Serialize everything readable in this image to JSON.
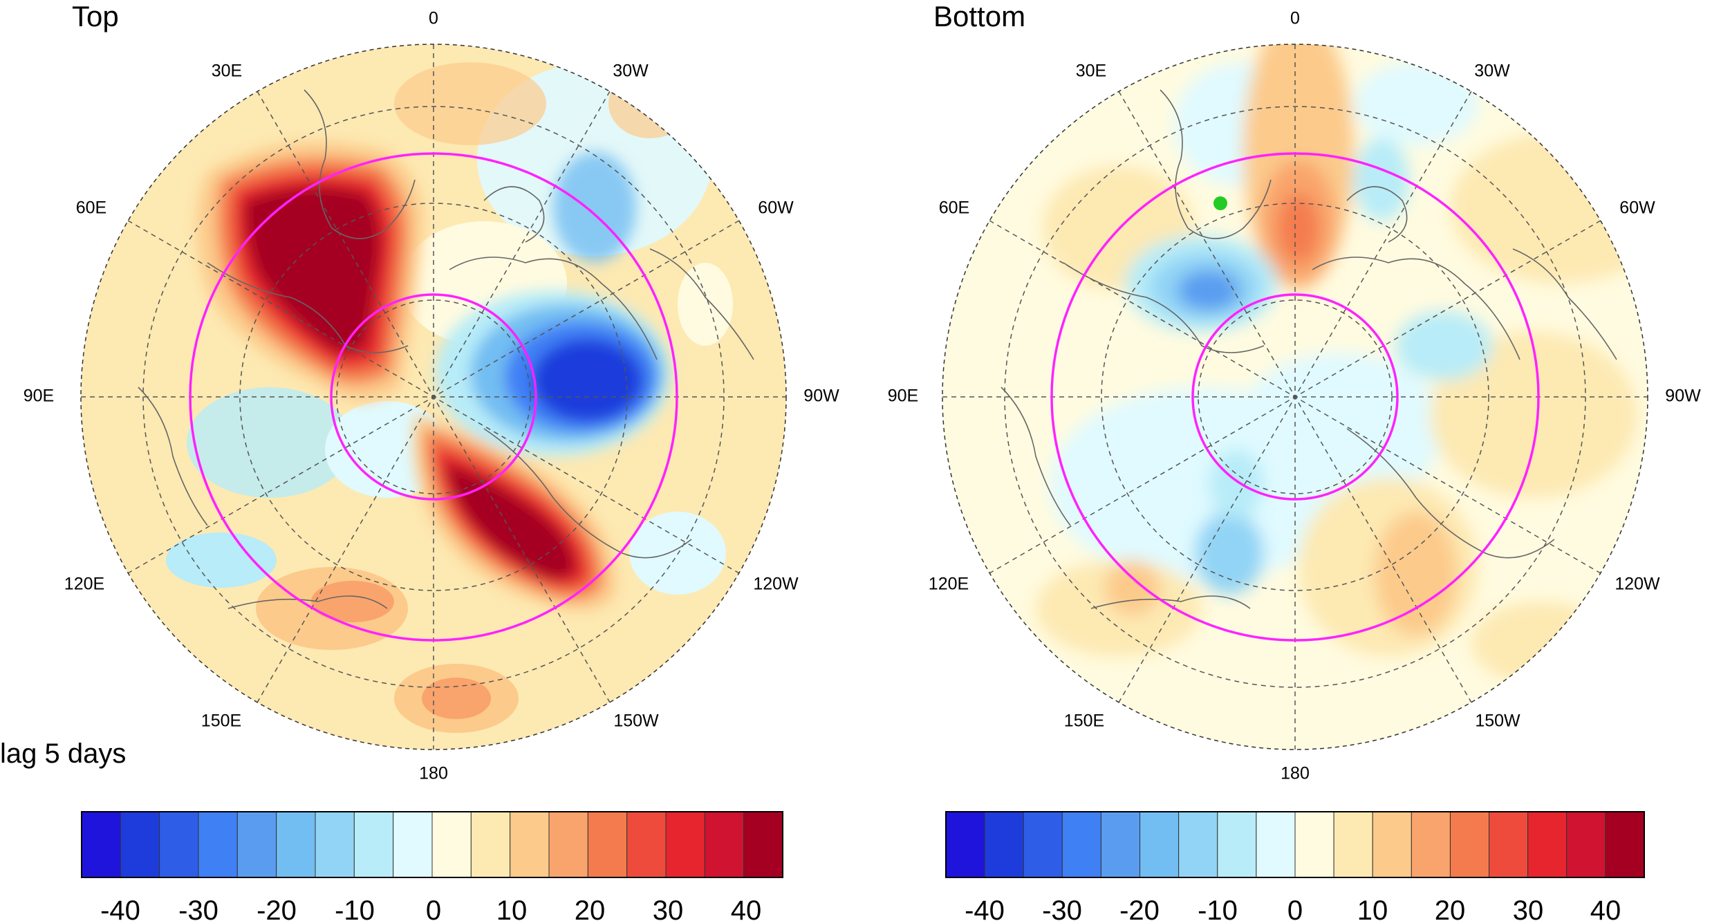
{
  "panels": [
    {
      "title": "Top",
      "subtitle": "lag 5 days",
      "lon_labels": [
        "0",
        "30W",
        "60W",
        "90W",
        "120W",
        "150W",
        "180",
        "150E",
        "120E",
        "90E",
        "60E",
        "30E"
      ],
      "colorbar_ticks": [
        "-40",
        "-30",
        "-20",
        "-10",
        "0",
        "10",
        "20",
        "30",
        "40"
      ],
      "features": [
        {
          "name": "positive-anomaly-europe",
          "color": "#a50021",
          "value": 40
        },
        {
          "name": "positive-anomaly-north-pacific",
          "color": "#a50021",
          "value": 40
        },
        {
          "name": "negative-anomaly-canadian-arctic",
          "color": "#1e3cdc",
          "value": -40
        }
      ]
    },
    {
      "title": "Bottom",
      "subtitle": "",
      "lon_labels": [
        "0",
        "30W",
        "60W",
        "90W",
        "120W",
        "150W",
        "180",
        "150E",
        "120E",
        "90E",
        "60E",
        "30E"
      ],
      "colorbar_ticks": [
        "-40",
        "-30",
        "-20",
        "-10",
        "0",
        "10",
        "20",
        "30",
        "40"
      ],
      "features": [
        {
          "name": "positive-anomaly-north-atlantic",
          "color": "#f47d4d",
          "value": 20
        },
        {
          "name": "negative-anomaly-scandinavia",
          "color": "#4f9cf0",
          "value": -20
        },
        {
          "name": "marker",
          "color": "#22cc22",
          "value": null
        }
      ]
    }
  ],
  "colorbar": {
    "levels": [
      -45,
      -40,
      -35,
      -30,
      -25,
      -20,
      -15,
      -10,
      -5,
      0,
      5,
      10,
      15,
      20,
      25,
      30,
      35,
      40,
      45
    ],
    "colors": [
      "#1f14dc",
      "#1e3cdc",
      "#2e5de8",
      "#3f80f5",
      "#5a9df0",
      "#72bdf2",
      "#92d4f5",
      "#b7ecf8",
      "#e0faff",
      "#fffbe0",
      "#fde9b2",
      "#fcca8b",
      "#f9a46c",
      "#f47b4d",
      "#ee4b3d",
      "#e6252e",
      "#cf1330",
      "#a50021"
    ]
  },
  "circle_color": "#ff22ff"
}
